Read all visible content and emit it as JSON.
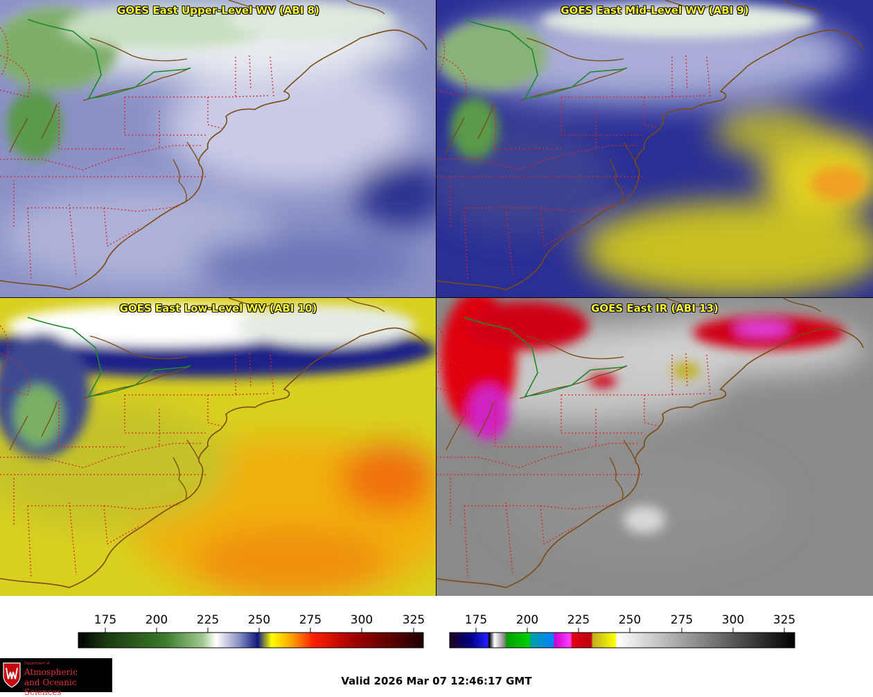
{
  "panels": [
    {
      "id": "upper",
      "title": "GOES East Upper-Level WV (ABI 8)"
    },
    {
      "id": "mid",
      "title": "GOES East Mid-Level WV (ABI 9)"
    },
    {
      "id": "low",
      "title": "GOES East Low-Level WV (ABI 10)"
    },
    {
      "id": "ir",
      "title": "GOES East IR (ABI 13)"
    }
  ],
  "colorbars": {
    "wv": {
      "ticks": [
        "175",
        "200",
        "225",
        "250",
        "275",
        "300",
        "325"
      ]
    },
    "ir": {
      "ticks": [
        "175",
        "200",
        "225",
        "250",
        "275",
        "300",
        "325"
      ]
    }
  },
  "valid_time": "Valid 2026 Mar 07 12:46:17 GMT",
  "logo": {
    "line1": "Department of",
    "line2": "Atmospheric",
    "line3": "and Oceanic Sciences"
  },
  "colors": {
    "coastline": "#7a4a10",
    "state_borders": "#e02020",
    "intl_border": "#1a8a2a",
    "title_text": "#ffff33"
  }
}
